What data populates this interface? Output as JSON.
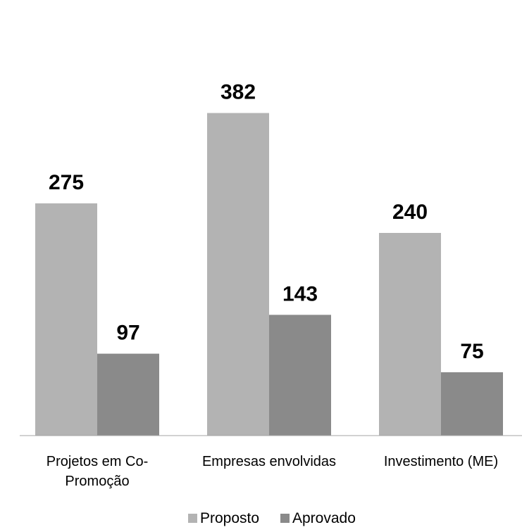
{
  "chart_data": {
    "type": "bar",
    "categories": [
      [
        "Projetos em Co-",
        "Promoção"
      ],
      [
        "Empresas envolvidas"
      ],
      [
        "Investimento (ME)"
      ]
    ],
    "series": [
      {
        "name": "Proposto",
        "values": [
          275,
          382,
          240
        ],
        "color": "#b3b3b3"
      },
      {
        "name": "Aprovado",
        "values": [
          97,
          143,
          75
        ],
        "color": "#8a8a8a"
      }
    ],
    "title": "",
    "xlabel": "",
    "ylabel": "",
    "ylim": [
      0,
      450
    ],
    "grid": false,
    "legend_position": "bottom",
    "data_labels": true
  }
}
